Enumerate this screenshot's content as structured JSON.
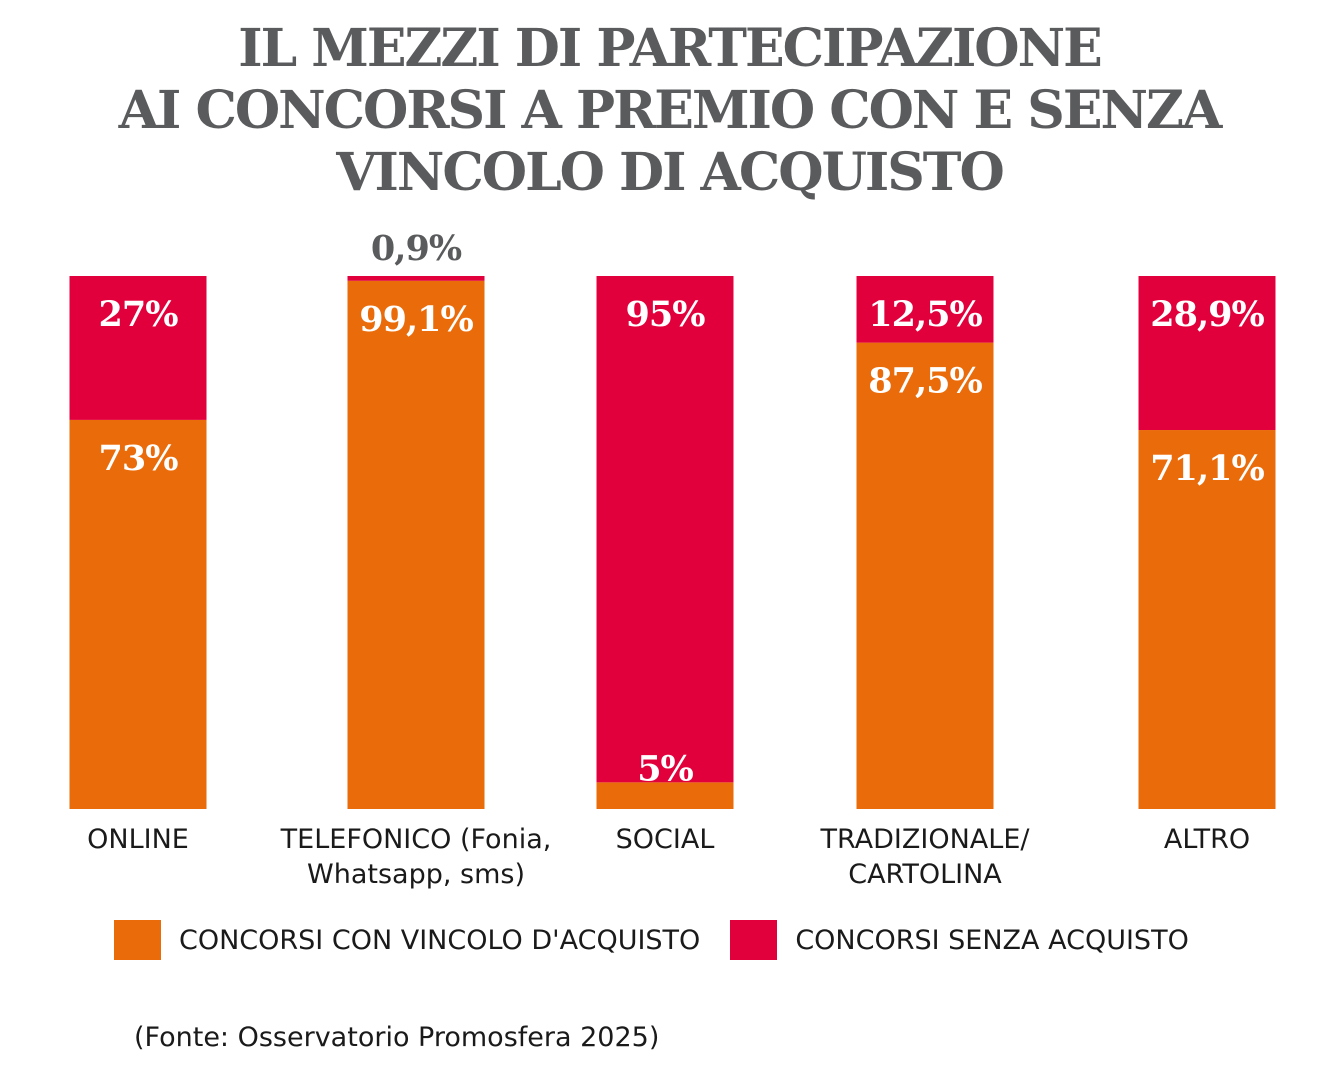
{
  "chart_data": {
    "type": "bar",
    "stacked": true,
    "percent": true,
    "title_lines": [
      "IL MEZZI DI PARTECIPAZIONE",
      "AI CONCORSI A PREMIO CON E SENZA",
      "VINCOLO DI ACQUISTO"
    ],
    "categories": [
      [
        "ONLINE"
      ],
      [
        "TELEFONICO (Fonia,",
        "Whatsapp, sms)"
      ],
      [
        "SOCIAL"
      ],
      [
        "TRADIZIONALE/",
        "CARTOLINA"
      ],
      [
        "ALTRO"
      ]
    ],
    "series": [
      {
        "name": "CONCORSI CON VINCOLO D'ACQUISTO",
        "color": "#ea6b0a",
        "values": [
          73,
          99.1,
          5,
          87.5,
          71.1
        ],
        "labels": [
          "73%",
          "99,1%",
          "5%",
          "87,5%",
          "71,1%"
        ]
      },
      {
        "name": "CONCORSI SENZA ACQUISTO",
        "color": "#e2003c",
        "values": [
          27,
          0.9,
          95,
          12.5,
          28.9
        ],
        "labels": [
          "27%",
          "0,9%",
          "95%",
          "12,5%",
          "28,9%"
        ]
      }
    ],
    "ylim": [
      0,
      100
    ],
    "xlabel": "",
    "ylabel": "",
    "legend": "bottom"
  },
  "source": "(Fonte: Osservatorio Promosfera 2025)"
}
